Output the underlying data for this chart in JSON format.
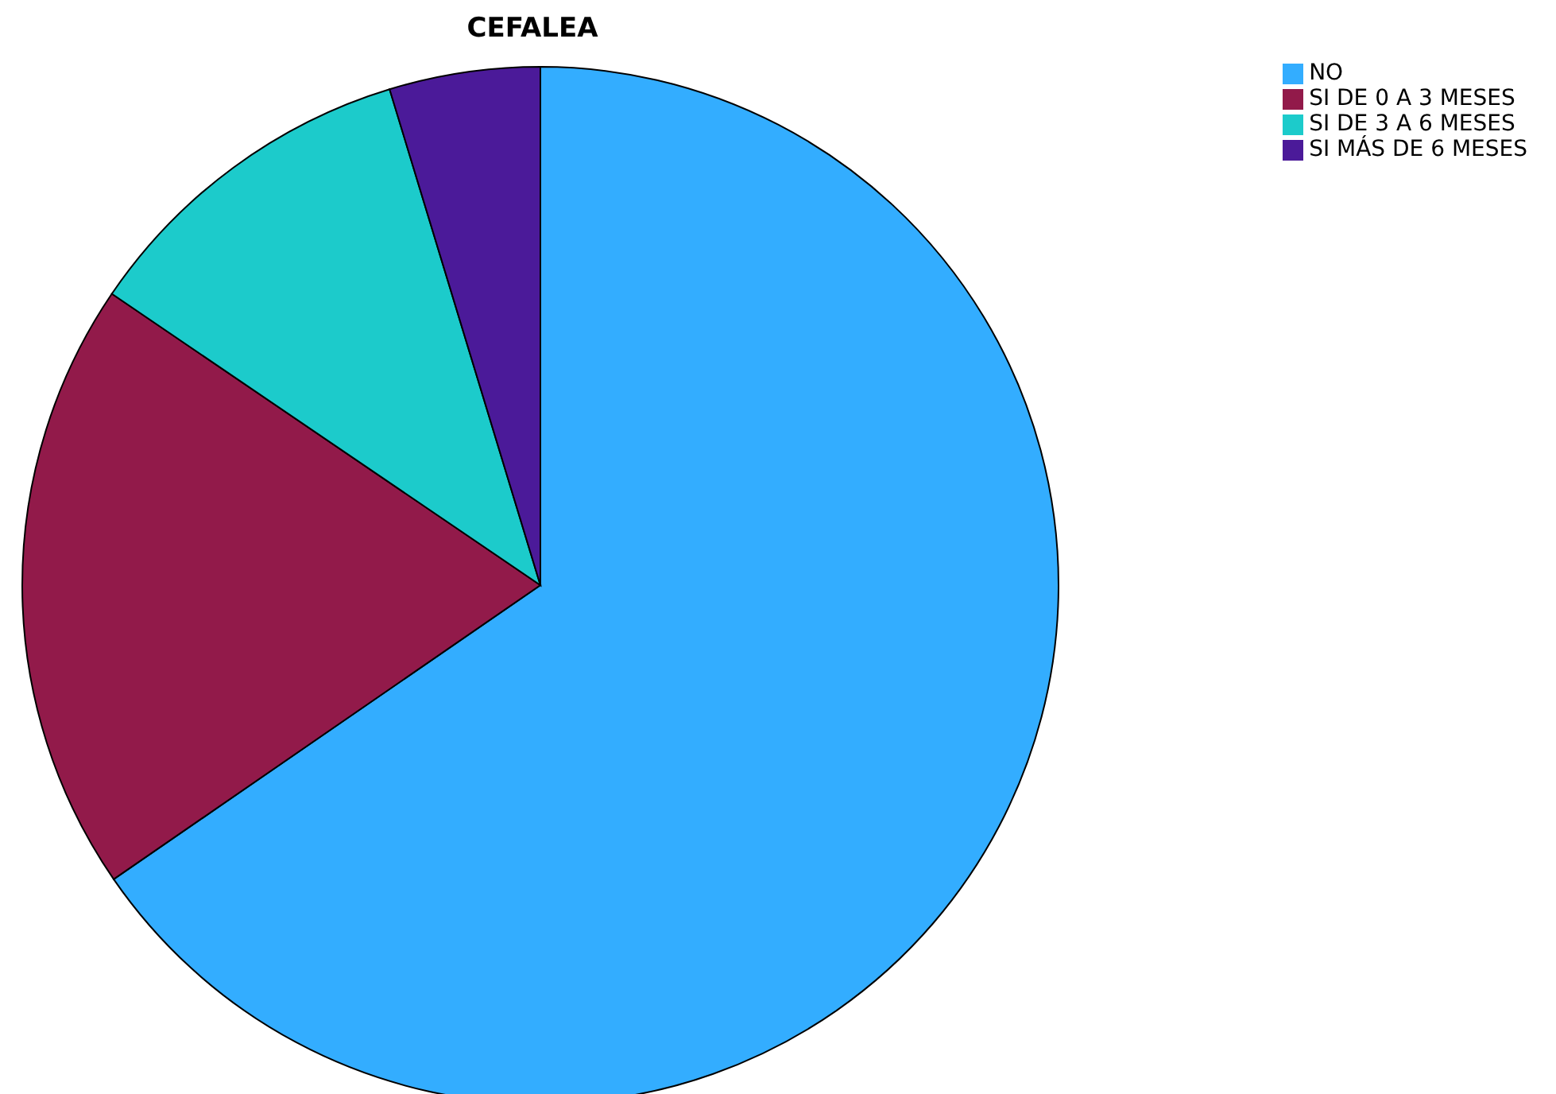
{
  "chart_data": {
    "type": "pie",
    "title": "CEFALEA",
    "categories": [
      "NO",
      "SI DE 0 A 3 MESES",
      "SI DE 3 A 6 MESES",
      "SI MÁS DE 6 MESES"
    ],
    "values": [
      65.4,
      19.1,
      10.8,
      4.7
    ],
    "colors": [
      "#33adff",
      "#921a4a",
      "#1ccbcb",
      "#4b1a99"
    ],
    "legend": "top right"
  }
}
